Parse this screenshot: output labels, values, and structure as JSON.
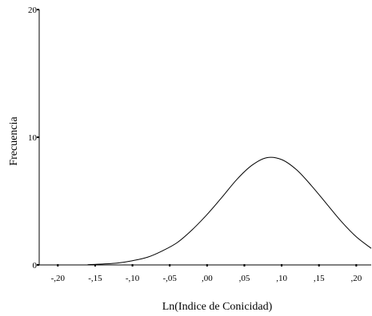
{
  "chart_data": {
    "type": "line",
    "title": "",
    "xlabel": "Ln(Indice de Conicidad)",
    "ylabel": "Frecuencia",
    "xlim": [
      -0.225,
      0.22
    ],
    "ylim": [
      0,
      20
    ],
    "grid": false,
    "x_ticks": [
      {
        "value": -0.2,
        "label": "-,20"
      },
      {
        "value": -0.15,
        "label": "-,15"
      },
      {
        "value": -0.1,
        "label": "-,10"
      },
      {
        "value": -0.05,
        "label": "-,05"
      },
      {
        "value": 0.0,
        "label": ",00"
      },
      {
        "value": 0.05,
        "label": ",05"
      },
      {
        "value": 0.1,
        "label": ",10"
      },
      {
        "value": 0.15,
        "label": ",15"
      },
      {
        "value": 0.2,
        "label": ",20"
      }
    ],
    "y_ticks": [
      {
        "value": 0,
        "label": "0"
      },
      {
        "value": 10,
        "label": "10"
      },
      {
        "value": 20,
        "label": "20"
      }
    ],
    "series": [
      {
        "color": "#000000",
        "x": [
          -0.16,
          -0.14,
          -0.12,
          -0.1,
          -0.08,
          -0.06,
          -0.04,
          -0.02,
          0.0,
          0.02,
          0.04,
          0.06,
          0.08,
          0.1,
          0.12,
          0.14,
          0.16,
          0.18,
          0.2,
          0.22
        ],
        "y": [
          0.02,
          0.07,
          0.15,
          0.33,
          0.6,
          1.1,
          1.75,
          2.75,
          3.95,
          5.3,
          6.7,
          7.8,
          8.4,
          8.25,
          7.45,
          6.2,
          4.8,
          3.4,
          2.2,
          1.3
        ]
      }
    ]
  }
}
